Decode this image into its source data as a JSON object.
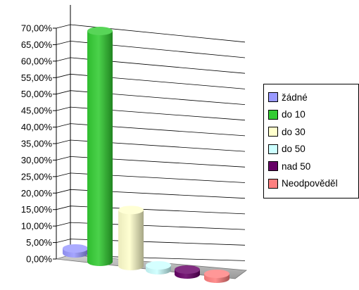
{
  "chart_data": {
    "type": "bar",
    "view": "3d-cylinder",
    "categories": [
      "žádné",
      "do 10",
      "do 30",
      "do 50",
      "nad 50",
      "Neodpověděl"
    ],
    "values": [
      1.5,
      70.0,
      17.0,
      1.5,
      1.5,
      1.5
    ],
    "colors": [
      "#9999ff",
      "#33cc33",
      "#ffffcc",
      "#ccffff",
      "#660066",
      "#ff8080"
    ],
    "y_ticks": [
      "0,00%",
      "5,00%",
      "10,00%",
      "15,00%",
      "20,00%",
      "25,00%",
      "30,00%",
      "35,00%",
      "40,00%",
      "45,00%",
      "50,00%",
      "55,00%",
      "60,00%",
      "65,00%",
      "70,00%"
    ],
    "ylim": [
      0,
      70
    ],
    "grid": true,
    "legend_position": "right",
    "title": "",
    "xlabel": "",
    "ylabel": ""
  }
}
